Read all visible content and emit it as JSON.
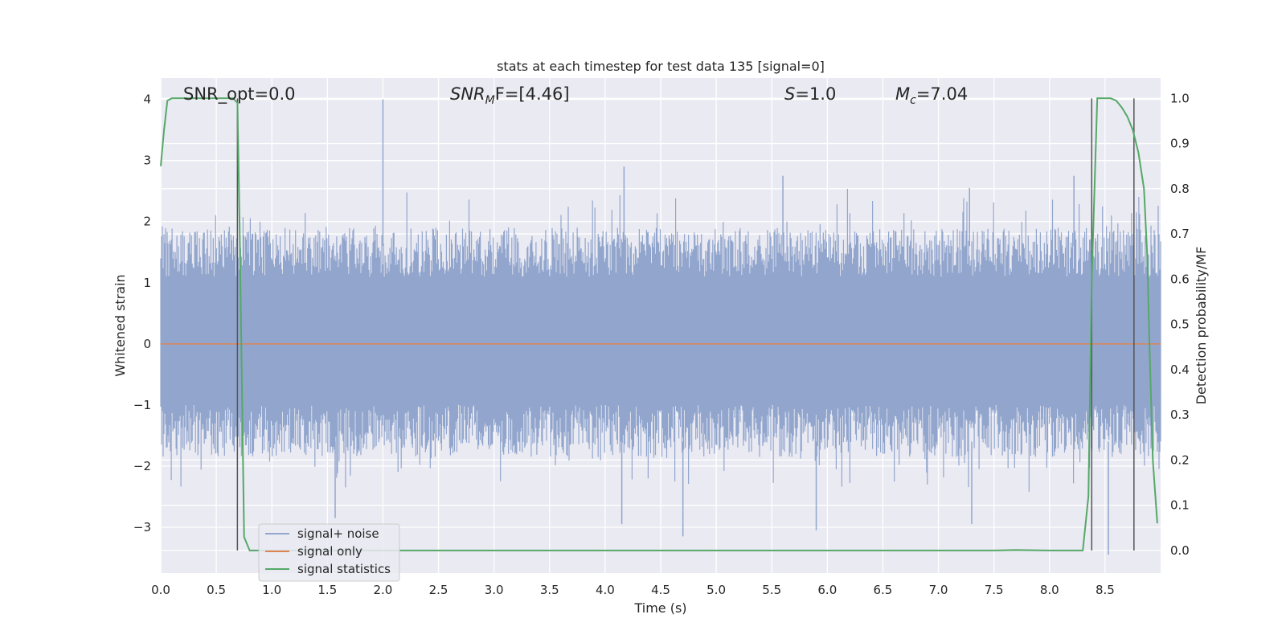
{
  "chart_data": {
    "type": "line",
    "title": "stats at each timestep for test data 135 [signal=0]",
    "xlabel": "Time (s)",
    "ylabel": "Whitened strain",
    "ylabel_right": "Detection probability/MF",
    "xlim": [
      0.0,
      9.0
    ],
    "ylim": [
      -3.75,
      4.35
    ],
    "ylim_right": [
      -0.05,
      1.045
    ],
    "xticks": [
      0.0,
      0.5,
      1.0,
      1.5,
      2.0,
      2.5,
      3.0,
      3.5,
      4.0,
      4.5,
      5.0,
      5.5,
      6.0,
      6.5,
      7.0,
      7.5,
      8.0,
      8.5
    ],
    "xtick_labels": [
      "0.0",
      "0.5",
      "1.0",
      "1.5",
      "2.0",
      "2.5",
      "3.0",
      "3.5",
      "4.0",
      "4.5",
      "5.0",
      "5.5",
      "6.0",
      "6.5",
      "7.0",
      "7.5",
      "8.0",
      "8.5"
    ],
    "yticks": [
      4,
      3,
      2,
      1,
      0,
      -1,
      -2,
      -3
    ],
    "ytick_labels": [
      "4",
      "3",
      "2",
      "1",
      "0",
      "−1",
      "−2",
      "−3"
    ],
    "yticks_right": [
      1.0,
      0.9,
      0.8,
      0.7,
      0.6,
      0.5,
      0.4,
      0.3,
      0.2,
      0.1,
      0.0
    ],
    "ytick_labels_right": [
      "1.0",
      "0.9",
      "0.8",
      "0.7",
      "0.6",
      "0.5",
      "0.4",
      "0.3",
      "0.2",
      "0.1",
      "0.0"
    ],
    "grid": true,
    "legend_position": "lower-left",
    "annotations": {
      "snr_opt": "SNR_opt=0.0",
      "snr_mf_sym": "SNR",
      "snr_mf_sub": "M",
      "snr_mf_rest": "F=[4.46]",
      "s_sym": "S",
      "s_rest": "=1.0",
      "mc_sym": "M",
      "mc_sub": "c",
      "mc_rest": "=7.04"
    },
    "series": [
      {
        "name": "signal+ noise",
        "color": "#92a6cd",
        "kind": "noise",
        "spikes": [
          {
            "x": 2.0,
            "y": 4.0
          },
          {
            "x": 4.17,
            "y": 2.9
          },
          {
            "x": 5.6,
            "y": 2.75
          },
          {
            "x": 7.28,
            "y": 2.55
          },
          {
            "x": 8.22,
            "y": 2.75
          },
          {
            "x": 1.57,
            "y": -2.85
          },
          {
            "x": 4.7,
            "y": -3.15
          },
          {
            "x": 5.9,
            "y": -3.05
          },
          {
            "x": 7.3,
            "y": -2.95
          },
          {
            "x": 8.53,
            "y": -3.45
          },
          {
            "x": 4.15,
            "y": -2.95
          }
        ]
      },
      {
        "name": "signal only",
        "color": "#dd8452",
        "x": [
          0.0,
          9.0
        ],
        "y": [
          0.0,
          0.0
        ]
      },
      {
        "name": "signal statistics",
        "color": "#55a868",
        "axis": "right",
        "x": [
          0.0,
          0.03,
          0.06,
          0.1,
          0.15,
          0.2,
          0.3,
          0.4,
          0.5,
          0.6,
          0.65,
          0.69,
          0.71,
          0.75,
          0.8,
          0.85,
          1.0,
          2.0,
          3.0,
          4.0,
          5.0,
          6.0,
          7.0,
          7.5,
          7.7,
          8.0,
          8.3,
          8.35,
          8.38,
          8.43,
          8.48,
          8.55,
          8.6,
          8.65,
          8.7,
          8.75,
          8.8,
          8.85,
          8.88,
          8.9,
          8.93,
          8.97
        ],
        "y": [
          0.85,
          0.93,
          0.995,
          1.0,
          1.0,
          1.0,
          1.0,
          1.0,
          1.0,
          1.0,
          1.0,
          0.99,
          0.72,
          0.03,
          0.0,
          0.0,
          0.0,
          0.0,
          0.0,
          0.0,
          0.0,
          0.0,
          0.0,
          0.0,
          0.001,
          0.0,
          0.0,
          0.12,
          0.6,
          1.0,
          1.0,
          1.0,
          0.995,
          0.98,
          0.96,
          0.93,
          0.88,
          0.8,
          0.65,
          0.45,
          0.2,
          0.06
        ]
      }
    ],
    "vlines": [
      0.69,
      8.38,
      8.76
    ],
    "vline_color": "#555555"
  }
}
